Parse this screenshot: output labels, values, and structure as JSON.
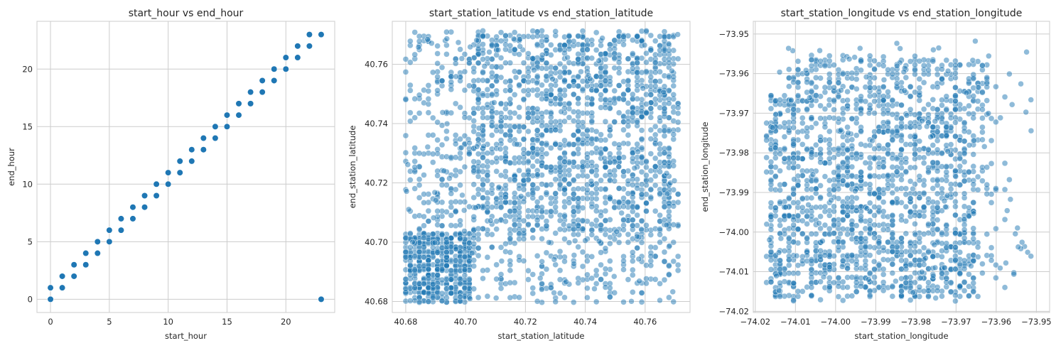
{
  "chart_data": [
    {
      "type": "scatter",
      "title": "start_hour vs end_hour",
      "xlabel": "start_hour",
      "ylabel": "end_hour",
      "xlim": [
        -1.15,
        24.15
      ],
      "ylim": [
        -1.15,
        24.15
      ],
      "xticks": [
        0,
        5,
        10,
        15,
        20
      ],
      "yticks": [
        0,
        5,
        10,
        15,
        20
      ],
      "xtick_labels": [
        "0",
        "5",
        "10",
        "15",
        "20"
      ],
      "ytick_labels": [
        "0",
        "5",
        "10",
        "15",
        "20"
      ],
      "grid": true,
      "marker_color": "#1f77b4",
      "marker_alpha": 1.0,
      "points": [
        [
          0,
          0
        ],
        [
          0,
          1
        ],
        [
          1,
          1
        ],
        [
          1,
          2
        ],
        [
          2,
          2
        ],
        [
          2,
          3
        ],
        [
          3,
          3
        ],
        [
          3,
          4
        ],
        [
          4,
          4
        ],
        [
          4,
          5
        ],
        [
          5,
          5
        ],
        [
          5,
          6
        ],
        [
          6,
          6
        ],
        [
          6,
          7
        ],
        [
          7,
          7
        ],
        [
          7,
          8
        ],
        [
          8,
          8
        ],
        [
          8,
          9
        ],
        [
          9,
          9
        ],
        [
          9,
          10
        ],
        [
          10,
          10
        ],
        [
          10,
          11
        ],
        [
          11,
          11
        ],
        [
          11,
          12
        ],
        [
          12,
          12
        ],
        [
          12,
          13
        ],
        [
          13,
          13
        ],
        [
          13,
          14
        ],
        [
          14,
          14
        ],
        [
          14,
          15
        ],
        [
          15,
          15
        ],
        [
          15,
          16
        ],
        [
          16,
          16
        ],
        [
          16,
          17
        ],
        [
          17,
          17
        ],
        [
          17,
          18
        ],
        [
          18,
          18
        ],
        [
          18,
          19
        ],
        [
          19,
          19
        ],
        [
          19,
          20
        ],
        [
          20,
          20
        ],
        [
          20,
          21
        ],
        [
          21,
          21
        ],
        [
          21,
          22
        ],
        [
          22,
          22
        ],
        [
          22,
          23
        ],
        [
          23,
          23
        ],
        [
          23,
          0
        ]
      ]
    },
    {
      "type": "scatter",
      "title": "start_station_latitude vs end_station_latitude",
      "xlabel": "start_station_latitude",
      "ylabel": "end_station_latitude",
      "xlim": [
        40.6755,
        40.775
      ],
      "ylim": [
        40.6763,
        40.7745
      ],
      "xticks": [
        40.68,
        40.7,
        40.72,
        40.74,
        40.76
      ],
      "yticks": [
        40.68,
        40.7,
        40.72,
        40.74,
        40.76
      ],
      "xtick_labels": [
        "40.68",
        "40.70",
        "40.72",
        "40.74",
        "40.76"
      ],
      "ytick_labels": [
        "40.68",
        "40.70",
        "40.72",
        "40.74",
        "40.76"
      ],
      "grid": true,
      "marker_color": "#1f77b4",
      "marker_alpha": 0.5,
      "data_extent": {
        "x": [
          40.68,
          40.771
        ],
        "y": [
          40.68,
          40.771
        ]
      },
      "dense_regions": [
        {
          "x": [
            40.702,
            40.771
          ],
          "y": [
            40.703,
            40.771
          ],
          "density": "very high"
        },
        {
          "x": [
            40.68,
            40.702
          ],
          "y": [
            40.68,
            40.703
          ],
          "density": "high"
        },
        {
          "x": [
            40.68,
            40.702
          ],
          "y": [
            40.703,
            40.771
          ],
          "density": "medium"
        },
        {
          "x": [
            40.702,
            40.771
          ],
          "y": [
            40.68,
            40.703
          ],
          "density": "medium"
        }
      ]
    },
    {
      "type": "scatter",
      "title": "start_station_longitude vs end_station_longitude",
      "xlabel": "start_station_longitude",
      "ylabel": "end_station_longitude",
      "xlim": [
        -74.0205,
        -73.9467
      ],
      "ylim": [
        -74.0203,
        -73.9468
      ],
      "xticks": [
        -74.02,
        -74.01,
        -74.0,
        -73.99,
        -73.98,
        -73.97,
        -73.96,
        -73.95
      ],
      "yticks": [
        -74.02,
        -74.01,
        -74.0,
        -73.99,
        -73.98,
        -73.97,
        -73.96,
        -73.95
      ],
      "xtick_labels": [
        "−74.02",
        "−74.01",
        "−74.00",
        "−73.99",
        "−73.98",
        "−73.97",
        "−73.96",
        "−73.95"
      ],
      "ytick_labels": [
        "−74.02",
        "−74.01",
        "−74.00",
        "−73.99",
        "−73.98",
        "−73.97",
        "−73.96",
        "−73.95"
      ],
      "grid": true,
      "marker_color": "#1f77b4",
      "marker_alpha": 0.5,
      "data_extent": {
        "x": [
          -74.0172,
          -73.95
        ],
        "y": [
          -74.0172,
          -73.95
        ]
      },
      "dense_regions": [
        {
          "x": [
            -74.017,
            -73.965
          ],
          "y": [
            -74.017,
            -73.965
          ],
          "density": "very high"
        },
        {
          "x": [
            -74.012,
            -73.962
          ],
          "y": [
            -73.965,
            -73.956
          ],
          "density": "medium"
        },
        {
          "x": [
            -73.965,
            -73.955
          ],
          "y": [
            -74.015,
            -73.96
          ],
          "density": "low"
        }
      ]
    }
  ]
}
